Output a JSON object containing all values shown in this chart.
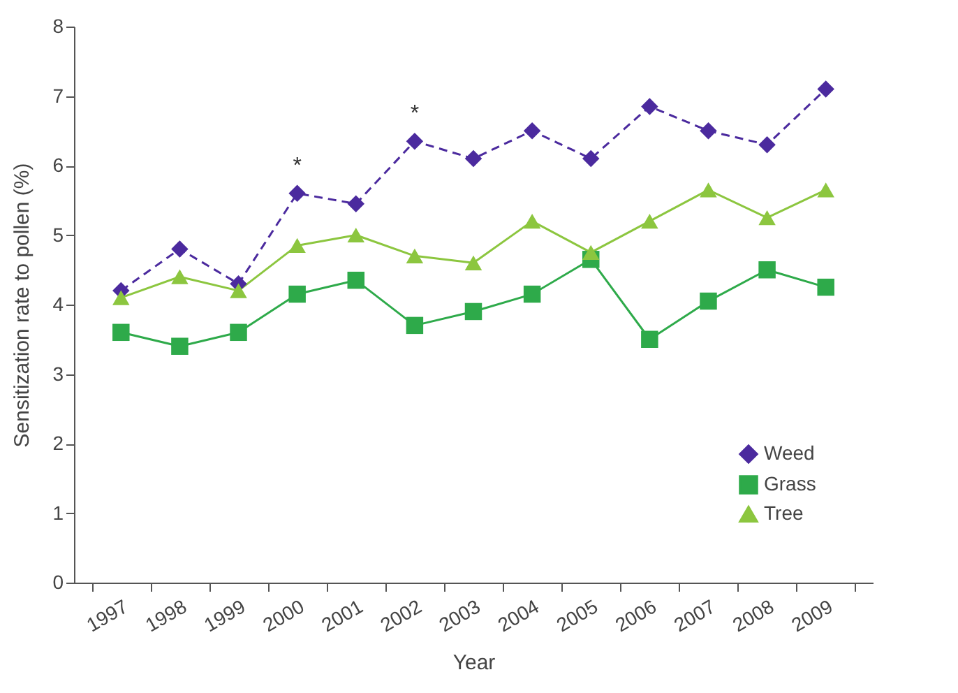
{
  "chart_data": {
    "type": "line",
    "xlabel": "Year",
    "ylabel": "Sensitization rate to pollen (%)",
    "categories": [
      "1997",
      "1998",
      "1999",
      "2000",
      "2001",
      "2002",
      "2003",
      "2004",
      "2005",
      "2006",
      "2007",
      "2008",
      "2009"
    ],
    "series": [
      {
        "name": "Weed",
        "color": "#4b2a9e",
        "marker": "diamond",
        "line_style": "dashed",
        "values": [
          4.2,
          4.8,
          4.3,
          5.6,
          5.45,
          6.35,
          6.1,
          6.5,
          6.1,
          6.85,
          6.5,
          6.3,
          7.1
        ]
      },
      {
        "name": "Grass",
        "color": "#2eaa4a",
        "marker": "square",
        "line_style": "solid",
        "values": [
          3.6,
          3.4,
          3.6,
          4.15,
          4.35,
          3.7,
          3.9,
          4.15,
          4.65,
          3.5,
          4.05,
          4.5,
          4.25
        ]
      },
      {
        "name": "Tree",
        "color": "#8cc63f",
        "marker": "triangle",
        "line_style": "solid",
        "values": [
          4.1,
          4.4,
          4.2,
          4.85,
          5.0,
          4.7,
          4.6,
          5.2,
          4.75,
          5.2,
          5.65,
          5.25,
          5.65
        ]
      }
    ],
    "ylim": [
      0,
      8
    ],
    "yticks": [
      0,
      1,
      2,
      3,
      4,
      5,
      6,
      7,
      8
    ],
    "grid": false,
    "legend": "bottom right",
    "annotations": [
      {
        "text": "*",
        "x": "2000",
        "y": 5.6
      },
      {
        "text": "*",
        "x": "2002",
        "y": 6.35
      }
    ]
  }
}
